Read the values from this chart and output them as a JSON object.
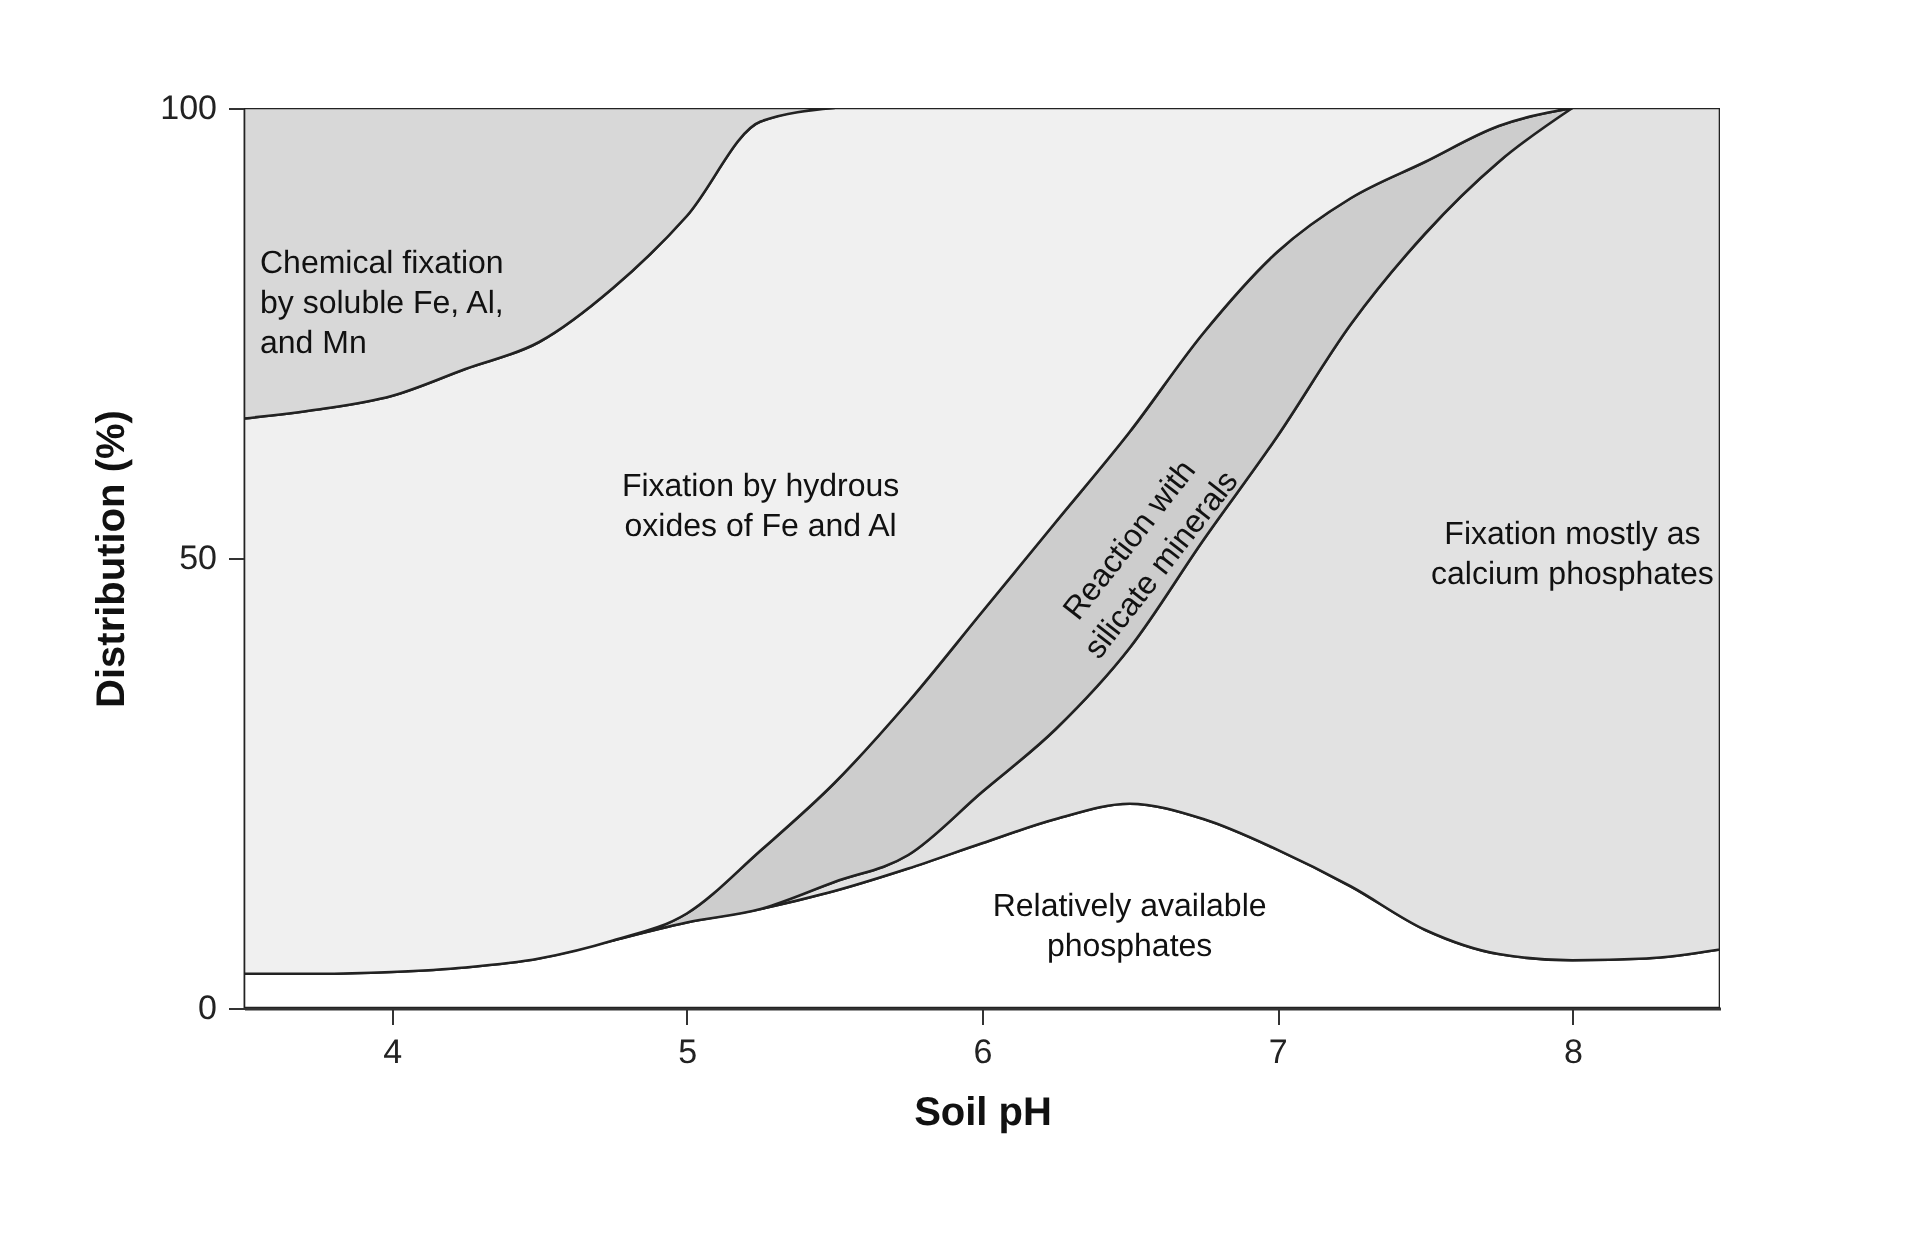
{
  "chart_data": {
    "type": "area",
    "stacked": true,
    "xlabel": "Soil pH",
    "ylabel": "Distribution (%)",
    "x": [
      3.5,
      3.75,
      4,
      4.25,
      4.5,
      4.75,
      5,
      5.25,
      5.5,
      5.75,
      6,
      6.25,
      6.5,
      6.75,
      7,
      7.25,
      7.5,
      7.75,
      8,
      8.25,
      8.5
    ],
    "xlim": [
      3.5,
      8.5
    ],
    "xticks": [
      4,
      5,
      6,
      7,
      8
    ],
    "ylim": [
      0,
      100
    ],
    "yticks": [
      0,
      50,
      100
    ],
    "grid": false,
    "legend": false,
    "series": [
      {
        "name": "Relatively available\nphosphates",
        "color": "#ffffff",
        "values": [
          3.8,
          3.8,
          4,
          4.5,
          5.5,
          7.5,
          9.5,
          11,
          13,
          15.5,
          18.3,
          21,
          22.7,
          21,
          17.6,
          13.5,
          8.7,
          6,
          5.3,
          5.5,
          6.5
        ]
      },
      {
        "name": "Fixation mostly as\ncalcium phosphates",
        "color": "#e2e2e2",
        "values": [
          null,
          null,
          null,
          null,
          null,
          null,
          null,
          0,
          1,
          1.5,
          5.7,
          10,
          17.3,
          31,
          45.9,
          62.5,
          77.3,
          88,
          94.7,
          94.5,
          93.5
        ]
      },
      {
        "name": "Reaction with\nsilicate minerals",
        "color": "#cdcdcd",
        "values": [
          null,
          null,
          null,
          null,
          null,
          0,
          1,
          6.5,
          11,
          17,
          20,
          23,
          24,
          23,
          20.5,
          14,
          8,
          4,
          0,
          null,
          null
        ]
      },
      {
        "name": "Fixation by hydrous\noxides of Fe and Al",
        "color": "#f0f0f0",
        "values": [
          61.7,
          62.7,
          64,
          66.5,
          68.5,
          72.5,
          77.5,
          81,
          75,
          66,
          56,
          46,
          36,
          25,
          16,
          10,
          6,
          2,
          0,
          null,
          null
        ]
      },
      {
        "name": "Chemical fixation\nby soluble Fe, Al,\nand Mn",
        "color": "#d8d8d8",
        "values": [
          34.5,
          33.5,
          32,
          29,
          26,
          20,
          12,
          1.5,
          0,
          null,
          null,
          null,
          null,
          null,
          null,
          null,
          null,
          null,
          null,
          null,
          null
        ]
      }
    ]
  }
}
